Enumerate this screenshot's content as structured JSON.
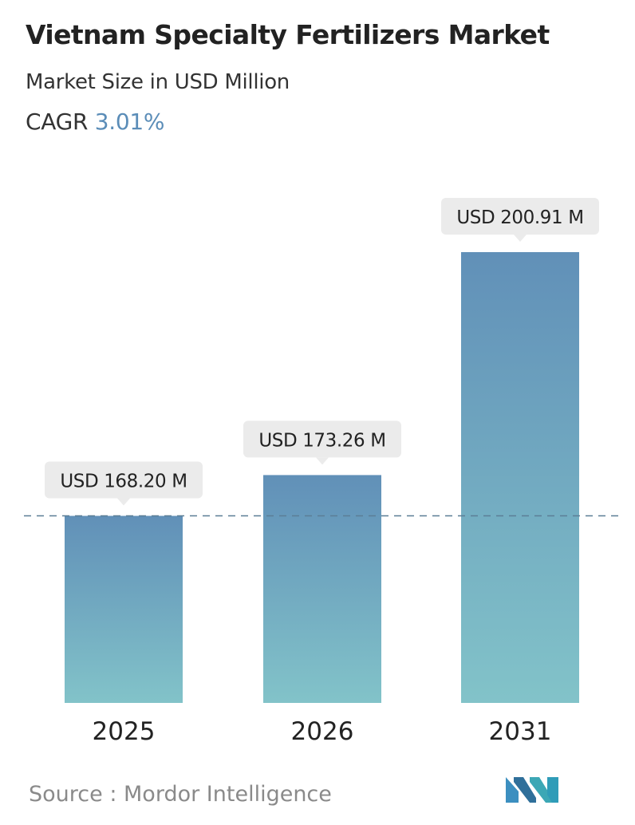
{
  "header": {
    "title": "Vietnam Specialty Fertilizers Market",
    "subtitle": "Market Size in USD Million",
    "cagr_label": "CAGR",
    "cagr_value": "3.01%"
  },
  "chart_data": {
    "type": "bar",
    "categories": [
      "2025",
      "2026",
      "2031"
    ],
    "values": [
      168.2,
      173.26,
      200.91
    ],
    "data_labels": [
      "USD 168.20 M",
      "USD 173.26 M",
      "USD 200.91 M"
    ],
    "reference_line": {
      "value": 168.2,
      "style": "dashed"
    },
    "grid": false,
    "legend": "none",
    "colors": {
      "bar_top": "#6190b8",
      "bar_bottom": "#82c3c9",
      "label_bg": "#ebebeb",
      "reference": "#5b7e96"
    }
  },
  "footer": {
    "source_label": "Source :",
    "source_value": "Mordor Intelligence",
    "logo_icon": "mordor-intelligence-logo-icon"
  }
}
